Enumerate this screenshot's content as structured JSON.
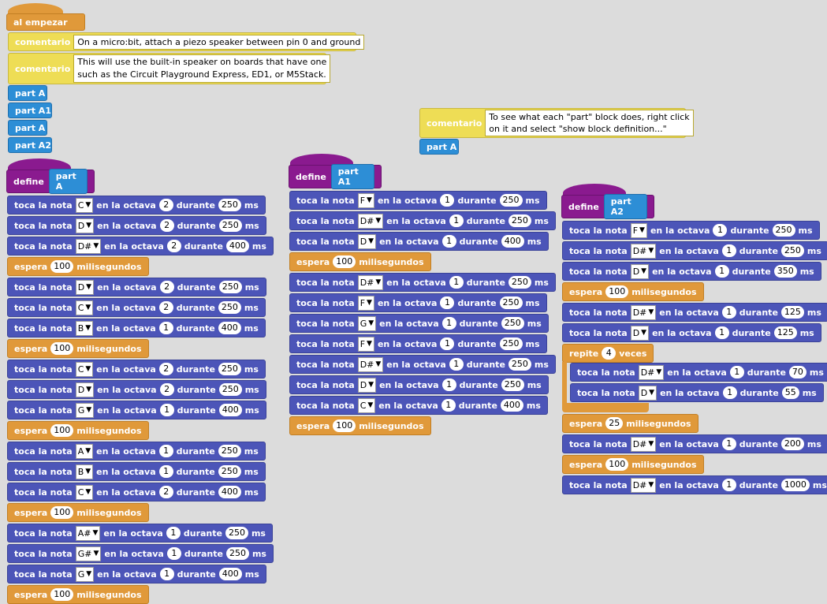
{
  "labels": {
    "play": "toca la nota",
    "octave": "en la octava",
    "during": "durante",
    "ms": "ms",
    "wait": "espera",
    "millis": "milisegundos",
    "define": "define",
    "comment": "comentario",
    "on_start": "al empezar",
    "repeat": "repite",
    "times": "veces"
  },
  "start": {
    "comment1": "On a micro:bit, attach a piezo speaker between pin 0 and ground",
    "comment2_line1": "This will use the built-in speaker on boards that have one",
    "comment2_line2": "such as the Circuit Playground Express, ED1, or M5Stack.",
    "calls": [
      "part A",
      "part A1",
      "part A",
      "part A2"
    ]
  },
  "note_comment": {
    "line1": "To see what each \"part\" block does, right click",
    "line2": "on it and select \"show block definition...\"",
    "call": "part A"
  },
  "defA": {
    "name": "part A",
    "blocks": [
      {
        "t": "n",
        "note": "C",
        "oct": "2",
        "dur": "250"
      },
      {
        "t": "n",
        "note": "D",
        "oct": "2",
        "dur": "250"
      },
      {
        "t": "n",
        "note": "D#",
        "oct": "2",
        "dur": "400"
      },
      {
        "t": "w",
        "ms": "100"
      },
      {
        "t": "n",
        "note": "D",
        "oct": "2",
        "dur": "250"
      },
      {
        "t": "n",
        "note": "C",
        "oct": "2",
        "dur": "250"
      },
      {
        "t": "n",
        "note": "B",
        "oct": "1",
        "dur": "400"
      },
      {
        "t": "w",
        "ms": "100"
      },
      {
        "t": "n",
        "note": "C",
        "oct": "2",
        "dur": "250"
      },
      {
        "t": "n",
        "note": "D",
        "oct": "2",
        "dur": "250"
      },
      {
        "t": "n",
        "note": "G",
        "oct": "1",
        "dur": "400"
      },
      {
        "t": "w",
        "ms": "100"
      },
      {
        "t": "n",
        "note": "A",
        "oct": "1",
        "dur": "250"
      },
      {
        "t": "n",
        "note": "B",
        "oct": "1",
        "dur": "250"
      },
      {
        "t": "n",
        "note": "C",
        "oct": "2",
        "dur": "400"
      },
      {
        "t": "w",
        "ms": "100"
      },
      {
        "t": "n",
        "note": "A#",
        "oct": "1",
        "dur": "250"
      },
      {
        "t": "n",
        "note": "G#",
        "oct": "1",
        "dur": "250"
      },
      {
        "t": "n",
        "note": "G",
        "oct": "1",
        "dur": "400"
      },
      {
        "t": "w",
        "ms": "100"
      }
    ]
  },
  "defA1": {
    "name": "part A1",
    "blocks": [
      {
        "t": "n",
        "note": "F",
        "oct": "1",
        "dur": "250"
      },
      {
        "t": "n",
        "note": "D#",
        "oct": "1",
        "dur": "250"
      },
      {
        "t": "n",
        "note": "D",
        "oct": "1",
        "dur": "400"
      },
      {
        "t": "w",
        "ms": "100"
      },
      {
        "t": "n",
        "note": "D#",
        "oct": "1",
        "dur": "250"
      },
      {
        "t": "n",
        "note": "F",
        "oct": "1",
        "dur": "250"
      },
      {
        "t": "n",
        "note": "G",
        "oct": "1",
        "dur": "250"
      },
      {
        "t": "n",
        "note": "F",
        "oct": "1",
        "dur": "250"
      },
      {
        "t": "n",
        "note": "D#",
        "oct": "1",
        "dur": "250"
      },
      {
        "t": "n",
        "note": "D",
        "oct": "1",
        "dur": "250"
      },
      {
        "t": "n",
        "note": "C",
        "oct": "1",
        "dur": "400"
      },
      {
        "t": "w",
        "ms": "100"
      }
    ]
  },
  "defA2": {
    "name": "part A2",
    "blocks1": [
      {
        "t": "n",
        "note": "F",
        "oct": "1",
        "dur": "250"
      },
      {
        "t": "n",
        "note": "D#",
        "oct": "1",
        "dur": "250"
      },
      {
        "t": "n",
        "note": "D",
        "oct": "1",
        "dur": "350"
      },
      {
        "t": "w",
        "ms": "100"
      },
      {
        "t": "n",
        "note": "D#",
        "oct": "1",
        "dur": "125"
      },
      {
        "t": "n",
        "note": "D",
        "oct": "1",
        "dur": "125"
      }
    ],
    "repeat_count": "4",
    "repeat_blocks": [
      {
        "t": "n",
        "note": "D#",
        "oct": "1",
        "dur": "70"
      },
      {
        "t": "n",
        "note": "D",
        "oct": "1",
        "dur": "55"
      }
    ],
    "blocks2": [
      {
        "t": "w",
        "ms": "25"
      },
      {
        "t": "n",
        "note": "D#",
        "oct": "1",
        "dur": "200"
      },
      {
        "t": "w",
        "ms": "100"
      },
      {
        "t": "n",
        "note": "D#",
        "oct": "1",
        "dur": "1000"
      }
    ]
  }
}
